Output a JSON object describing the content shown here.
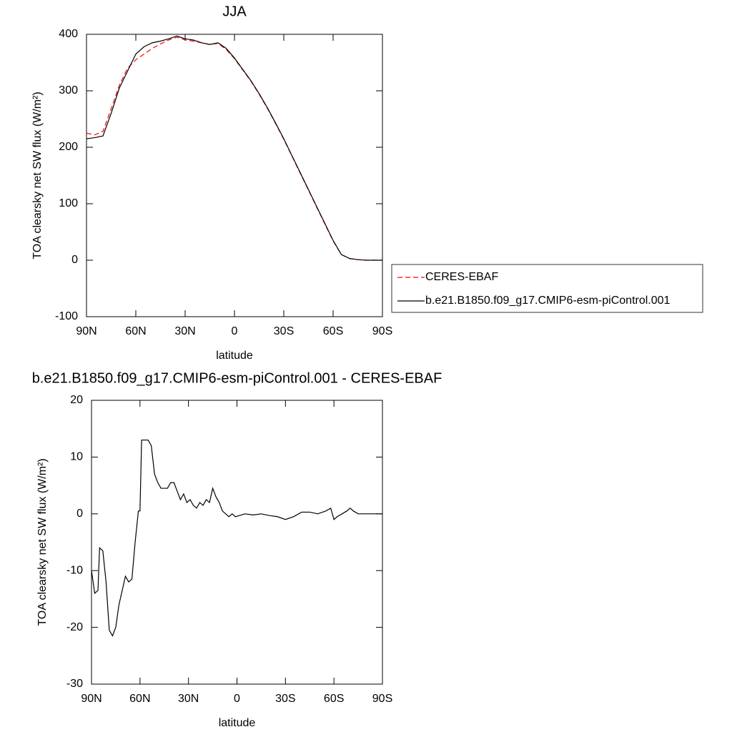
{
  "chart_data": [
    {
      "type": "line",
      "title": "JJA",
      "xlabel": "latitude",
      "ylabel": "TOA clearsky net SW flux (W/m²)",
      "x": [
        90,
        85,
        80,
        75,
        70,
        65,
        60,
        55,
        50,
        45,
        40,
        35,
        30,
        25,
        20,
        15,
        10,
        5,
        0,
        -5,
        -10,
        -15,
        -20,
        -25,
        -30,
        -35,
        -40,
        -45,
        -50,
        -55,
        -60,
        -65,
        -70,
        -75,
        -80,
        -85,
        -90
      ],
      "series": [
        {
          "name": "CERES-EBAF",
          "color": "#ff0000",
          "linestyle": "dashed",
          "values": [
            225,
            222,
            228,
            268,
            310,
            340,
            355,
            365,
            375,
            383,
            390,
            395,
            390,
            388,
            385,
            382,
            384,
            373,
            357,
            337,
            317,
            294,
            269,
            242,
            214,
            184,
            154,
            124,
            94,
            64,
            34,
            10,
            3,
            1,
            0,
            0,
            0
          ]
        },
        {
          "name": "b.e21.B1850.f09_g17.CMIP6-esm-piControl.001",
          "color": "#000000",
          "linestyle": "solid",
          "values": [
            215,
            217,
            220,
            260,
            305,
            335,
            365,
            378,
            385,
            388,
            392,
            397,
            392,
            390,
            385,
            382,
            385,
            375,
            358,
            338,
            318,
            295,
            270,
            243,
            215,
            185,
            155,
            125,
            95,
            65,
            35,
            10,
            3,
            1,
            0,
            0,
            0
          ]
        }
      ],
      "xlim": [
        90,
        -90
      ],
      "xticks": [
        {
          "value": 90,
          "label": "90N"
        },
        {
          "value": 60,
          "label": "60N"
        },
        {
          "value": 30,
          "label": "30N"
        },
        0,
        {
          "value": -30,
          "label": "30S"
        },
        {
          "value": -60,
          "label": "60S"
        },
        {
          "value": -90,
          "label": "90S"
        }
      ],
      "ylim": [
        -100,
        400
      ],
      "yticks": [
        -100,
        0,
        100,
        200,
        300,
        400
      ],
      "grid": false,
      "legend": "right"
    },
    {
      "type": "line",
      "title": "b.e21.B1850.f09_g17.CMIP6-esm-piControl.001 - CERES-EBAF",
      "xlabel": "latitude",
      "ylabel": "TOA clearsky net SW flux (W/m²)",
      "x": [
        90,
        88,
        86,
        85,
        83,
        81,
        79,
        77,
        75,
        73,
        71,
        69,
        67,
        65,
        63,
        61,
        60,
        59,
        57,
        55,
        53,
        51,
        49,
        47,
        45,
        43,
        41,
        39,
        37,
        35,
        33,
        31,
        29,
        27,
        25,
        23,
        21,
        19,
        17,
        15,
        13,
        11,
        9,
        7,
        5,
        3,
        1,
        -5,
        -10,
        -15,
        -20,
        -25,
        -30,
        -35,
        -40,
        -45,
        -50,
        -55,
        -58,
        -60,
        -62,
        -65,
        -68,
        -70,
        -72,
        -75,
        -80,
        -90
      ],
      "values": [
        -10,
        -14,
        -13.5,
        -6,
        -6.5,
        -12,
        -20.5,
        -21.5,
        -20,
        -16,
        -13.5,
        -11,
        -12,
        -11.5,
        -5,
        0.5,
        0.5,
        13,
        13,
        13,
        12,
        7,
        5.5,
        4.5,
        4.5,
        4.5,
        5.5,
        5.5,
        4,
        2.5,
        3.5,
        2,
        2.5,
        1.5,
        1,
        2,
        1.5,
        2.5,
        2,
        4.5,
        3,
        2,
        0.5,
        0,
        -0.5,
        0,
        -0.5,
        0,
        -0.2,
        0,
        -0.3,
        -0.5,
        -1,
        -0.5,
        0.3,
        0.3,
        0,
        0.5,
        1,
        -1,
        -0.5,
        0,
        0.5,
        1,
        0.5,
        0,
        0,
        0
      ],
      "color": "#000000",
      "linestyle": "solid",
      "xlim": [
        90,
        -90
      ],
      "xticks": [
        {
          "value": 90,
          "label": "90N"
        },
        {
          "value": 60,
          "label": "60N"
        },
        {
          "value": 30,
          "label": "30N"
        },
        0,
        {
          "value": -30,
          "label": "30S"
        },
        {
          "value": -60,
          "label": "60S"
        },
        {
          "value": -90,
          "label": "90S"
        }
      ],
      "ylim": [
        -30,
        20
      ],
      "yticks": [
        -30,
        -20,
        -10,
        0,
        10,
        20
      ],
      "grid": false
    }
  ]
}
